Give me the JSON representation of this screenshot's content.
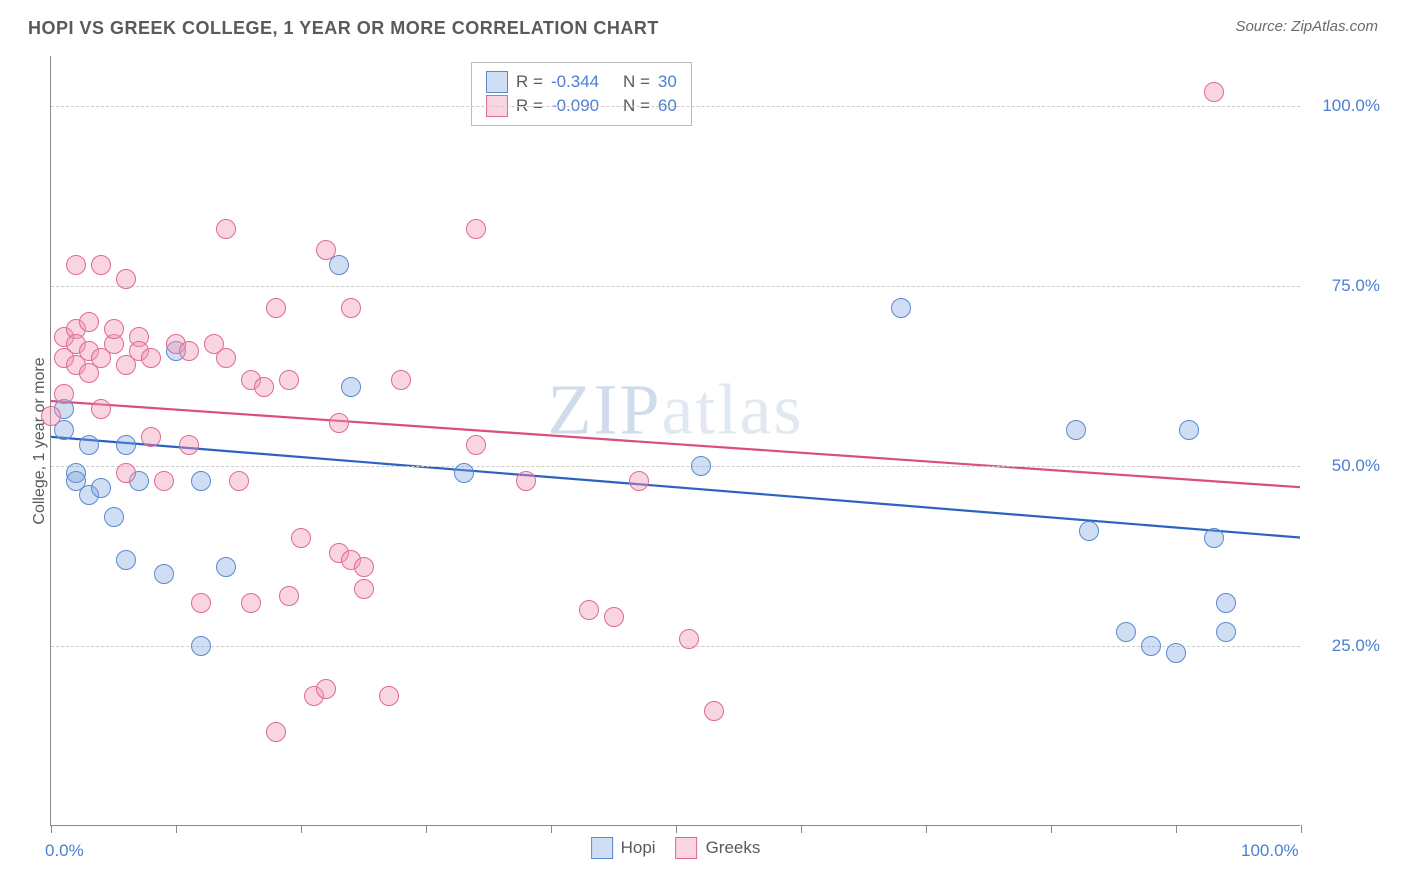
{
  "title": "HOPI VS GREEK COLLEGE, 1 YEAR OR MORE CORRELATION CHART",
  "source_label": "Source: ZipAtlas.com",
  "ylabel": "College, 1 year or more",
  "watermark": "ZIPatlas",
  "chart": {
    "type": "scatter",
    "xlim": [
      0,
      100
    ],
    "ylim": [
      0,
      107
    ],
    "ytick_values": [
      25,
      50,
      75,
      100
    ],
    "ytick_labels": [
      "25.0%",
      "50.0%",
      "75.0%",
      "100.0%"
    ],
    "xtick_values": [
      0,
      10,
      20,
      30,
      40,
      50,
      60,
      70,
      80,
      90,
      100
    ],
    "xtick_labels_shown": {
      "0": "0.0%",
      "100": "100.0%"
    },
    "background_color": "#ffffff",
    "grid_color": "#cccccc",
    "axis_color": "#888888",
    "marker_radius": 10,
    "series": [
      {
        "name": "Hopi",
        "fill": "rgba(120,160,220,0.35)",
        "stroke": "#5a8ad0",
        "trend_color": "#2d62c0",
        "trend_width": 2.2,
        "trend": {
          "y_at_x0": 54,
          "y_at_x100": 40
        },
        "R": "-0.344",
        "N": "30",
        "points": [
          [
            1,
            58
          ],
          [
            1,
            55
          ],
          [
            2,
            49
          ],
          [
            2,
            48
          ],
          [
            3,
            46
          ],
          [
            3,
            53
          ],
          [
            4,
            47
          ],
          [
            5,
            43
          ],
          [
            6,
            53
          ],
          [
            6,
            37
          ],
          [
            7,
            48
          ],
          [
            9,
            35
          ],
          [
            10,
            66
          ],
          [
            12,
            25
          ],
          [
            12,
            48
          ],
          [
            14,
            36
          ],
          [
            23,
            78
          ],
          [
            24,
            61
          ],
          [
            33,
            49
          ],
          [
            52,
            50
          ],
          [
            68,
            72
          ],
          [
            82,
            55
          ],
          [
            83,
            41
          ],
          [
            86,
            27
          ],
          [
            88,
            25
          ],
          [
            90,
            24
          ],
          [
            91,
            55
          ],
          [
            93,
            40
          ],
          [
            94,
            31
          ],
          [
            94,
            27
          ]
        ]
      },
      {
        "name": "Greeks",
        "fill": "rgba(240,150,180,0.40)",
        "stroke": "#e06a94",
        "trend_color": "#d94e7d",
        "trend_width": 2.2,
        "trend": {
          "y_at_x0": 59,
          "y_at_x100": 47
        },
        "R": "-0.090",
        "N": "60",
        "points": [
          [
            0,
            57
          ],
          [
            1,
            68
          ],
          [
            1,
            65
          ],
          [
            1,
            60
          ],
          [
            2,
            69
          ],
          [
            2,
            64
          ],
          [
            2,
            67
          ],
          [
            2,
            78
          ],
          [
            3,
            70
          ],
          [
            3,
            66
          ],
          [
            3,
            63
          ],
          [
            4,
            58
          ],
          [
            4,
            78
          ],
          [
            4,
            65
          ],
          [
            5,
            67
          ],
          [
            5,
            69
          ],
          [
            6,
            64
          ],
          [
            6,
            49
          ],
          [
            6,
            76
          ],
          [
            7,
            68
          ],
          [
            7,
            66
          ],
          [
            8,
            65
          ],
          [
            8,
            54
          ],
          [
            9,
            48
          ],
          [
            10,
            67
          ],
          [
            11,
            53
          ],
          [
            11,
            66
          ],
          [
            12,
            31
          ],
          [
            13,
            67
          ],
          [
            14,
            83
          ],
          [
            14,
            65
          ],
          [
            15,
            48
          ],
          [
            16,
            62
          ],
          [
            16,
            31
          ],
          [
            17,
            61
          ],
          [
            18,
            72
          ],
          [
            18,
            13
          ],
          [
            19,
            32
          ],
          [
            19,
            62
          ],
          [
            20,
            40
          ],
          [
            21,
            18
          ],
          [
            22,
            19
          ],
          [
            22,
            80
          ],
          [
            23,
            56
          ],
          [
            23,
            38
          ],
          [
            24,
            72
          ],
          [
            24,
            37
          ],
          [
            25,
            33
          ],
          [
            25,
            36
          ],
          [
            27,
            18
          ],
          [
            28,
            62
          ],
          [
            34,
            83
          ],
          [
            34,
            53
          ],
          [
            38,
            48
          ],
          [
            43,
            30
          ],
          [
            45,
            29
          ],
          [
            47,
            48
          ],
          [
            51,
            26
          ],
          [
            53,
            16
          ],
          [
            93,
            102
          ]
        ]
      }
    ]
  },
  "legend_top": {
    "r_label": "R =",
    "n_label": "N ="
  },
  "legend_bottom": [
    "Hopi",
    "Greeks"
  ]
}
